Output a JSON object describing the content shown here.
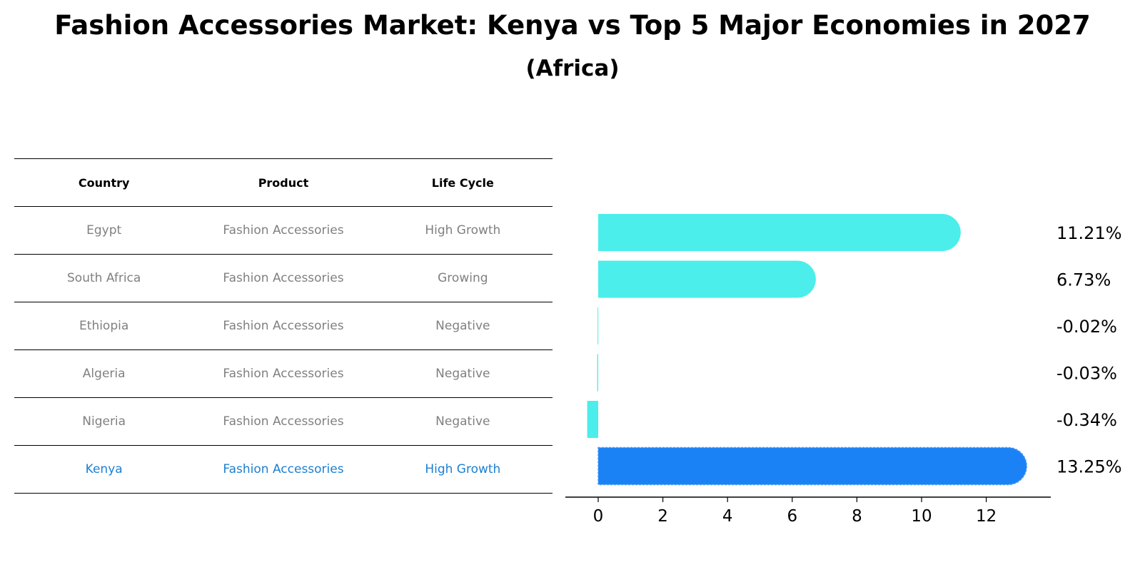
{
  "title": "Fashion Accessories Market: Kenya vs Top 5 Major Economies in 2027",
  "subtitle": "(Africa)",
  "table": {
    "headers": [
      "Country",
      "Product",
      "Life Cycle"
    ],
    "rows": [
      [
        "Egypt",
        "Fashion Accessories",
        "High Growth"
      ],
      [
        "South Africa",
        "Fashion Accessories",
        "Growing"
      ],
      [
        "Ethiopia",
        "Fashion Accessories",
        "Negative"
      ],
      [
        "Algeria",
        "Fashion Accessories",
        "Negative"
      ],
      [
        "Nigeria",
        "Fashion Accessories",
        "Negative"
      ],
      [
        "Kenya",
        "Fashion Accessories",
        "High Growth"
      ]
    ]
  },
  "chart_data": {
    "type": "bar",
    "orientation": "horizontal",
    "categories": [
      "Egypt",
      "South Africa",
      "Ethiopia",
      "Algeria",
      "Nigeria",
      "Kenya"
    ],
    "values": [
      11.21,
      6.73,
      -0.02,
      -0.03,
      -0.34,
      13.25
    ],
    "value_labels": [
      "11.21%",
      "6.73%",
      "-0.02%",
      "-0.03%",
      "-0.34%",
      "13.25%"
    ],
    "xlim": [
      -1,
      14
    ],
    "xticks": [
      0,
      2,
      4,
      6,
      8,
      10,
      12
    ],
    "highlight_index": 5,
    "grid": false,
    "colors": {
      "default": "#4beeea",
      "highlight": "#1a82f5"
    }
  }
}
